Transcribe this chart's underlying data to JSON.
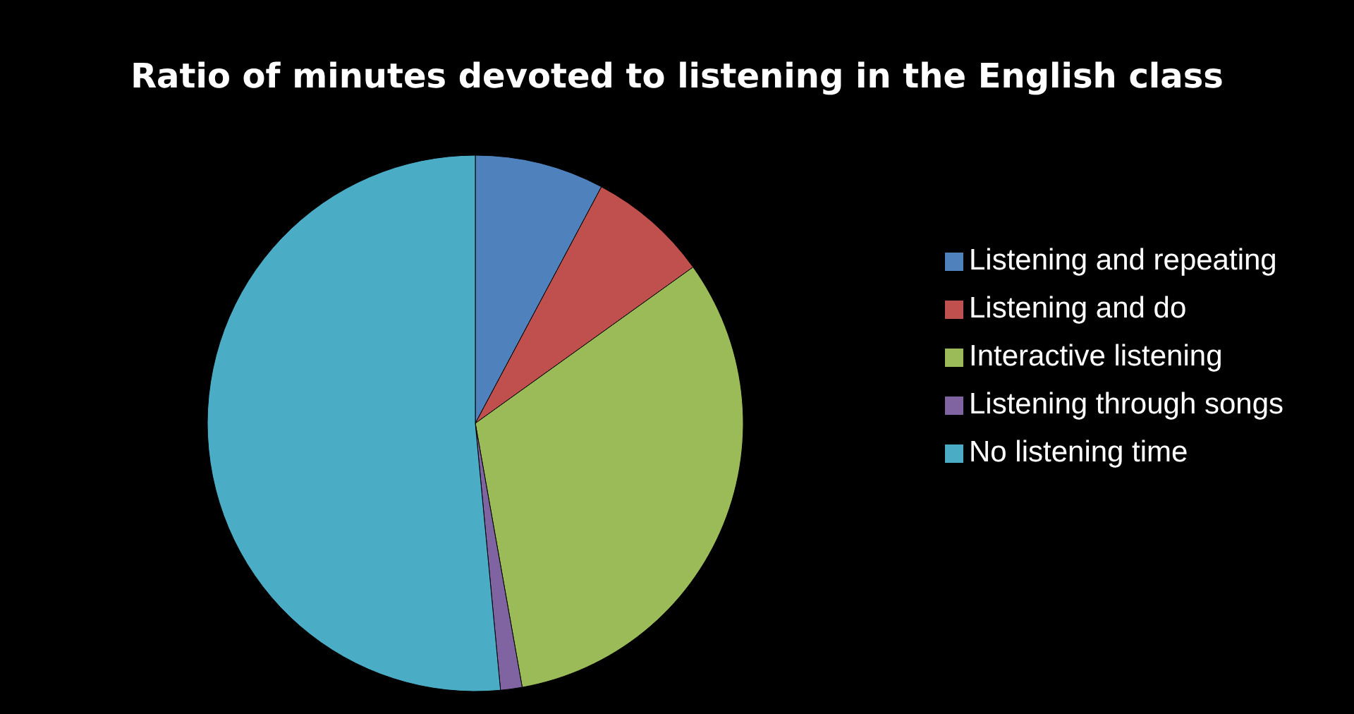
{
  "chart_data": {
    "type": "pie",
    "title": "Ratio of minutes devoted to listening in the English class",
    "categories": [
      "Listening and repeating",
      "Listening and do",
      "Interactive listening",
      "Listening through songs",
      "No listening time"
    ],
    "values": [
      7.8,
      7.3,
      32.1,
      1.3,
      51.5
    ],
    "colors": [
      "#4f81bd",
      "#c0504d",
      "#9bbb59",
      "#8064a2",
      "#4bacc6"
    ],
    "legend": "right"
  }
}
